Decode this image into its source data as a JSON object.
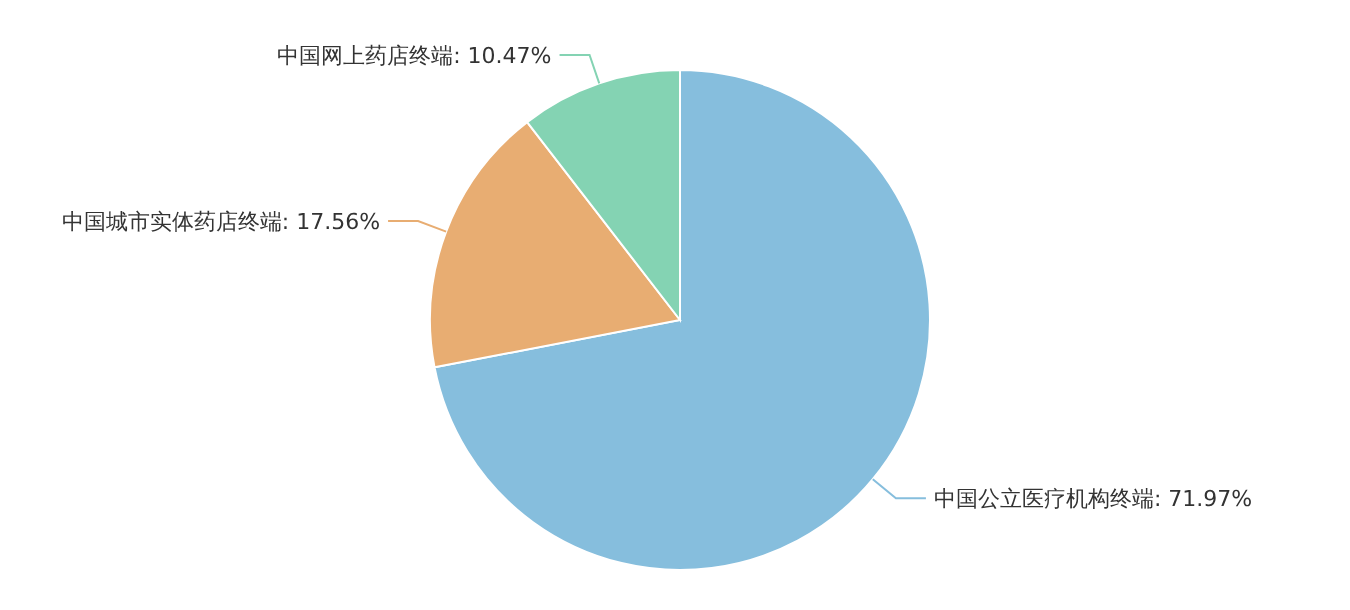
{
  "chart_data": {
    "type": "pie",
    "categories": [
      "中国公立医疗机构终端",
      "中国城市实体药店终端",
      "中国网上药店终端"
    ],
    "values": [
      71.97,
      17.56,
      10.47
    ],
    "colors": [
      "#86bedd",
      "#e8ad72",
      "#84d3b3"
    ],
    "value_labels": [
      "71.97%",
      "17.56%",
      "10.47%"
    ]
  }
}
